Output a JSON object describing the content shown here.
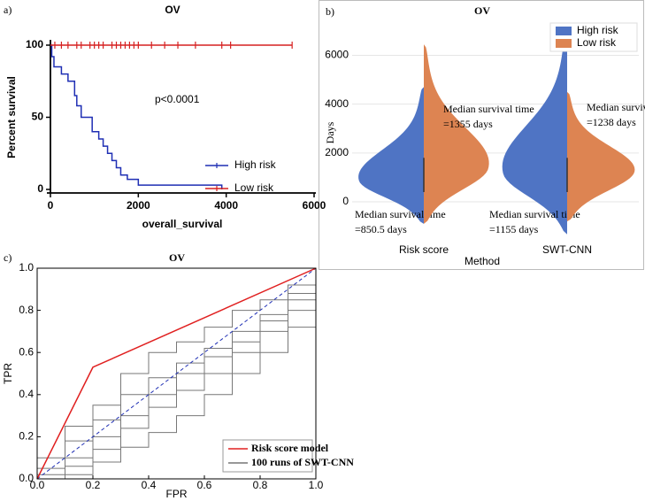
{
  "chart_data": [
    {
      "type": "survival",
      "panel_label": "a)",
      "title": "OV",
      "xlabel": "overall_survival",
      "ylabel": "Percent survival",
      "annotation": "p<0.0001",
      "xlim": [
        0,
        6000
      ],
      "xticks": [
        0,
        2000,
        4000,
        6000
      ],
      "ylim": [
        0,
        100
      ],
      "yticks": [
        0,
        50,
        100
      ],
      "legend": "right",
      "series": [
        {
          "name": "High risk",
          "color": "#1f2fb4",
          "x": [
            0,
            30,
            30,
            80,
            80,
            250,
            250,
            400,
            400,
            550,
            550,
            600,
            600,
            700,
            700,
            950,
            950,
            1100,
            1100,
            1200,
            1200,
            1300,
            1300,
            1400,
            1400,
            1500,
            1500,
            1600,
            1600,
            1750,
            1750,
            2000,
            2000,
            3900,
            3900
          ],
          "values": [
            100,
            100,
            92,
            92,
            85,
            85,
            80,
            80,
            75,
            75,
            65,
            65,
            58,
            58,
            50,
            50,
            40,
            40,
            35,
            35,
            30,
            30,
            25,
            25,
            20,
            20,
            15,
            15,
            10,
            10,
            7,
            7,
            3,
            3,
            0
          ]
        },
        {
          "name": "Low risk",
          "color": "#d62020",
          "x": [
            0,
            5500
          ],
          "values": [
            100,
            100
          ],
          "censored": [
            100,
            250,
            400,
            600,
            700,
            900,
            1000,
            1100,
            1200,
            1400,
            1500,
            1600,
            1700,
            1800,
            1900,
            2000,
            2300,
            2600,
            2900,
            3300,
            3900,
            4100,
            5500
          ]
        }
      ]
    },
    {
      "type": "violin",
      "panel_label": "b)",
      "title": "OV",
      "xlabel": "Method",
      "ylabel": "Days",
      "annotation": "Median survival time",
      "categories": [
        "Risk score",
        "SWT-CNN"
      ],
      "ylim": [
        -1450,
        7250
      ],
      "yticks": [
        0,
        2000,
        4000,
        6000
      ],
      "grid": true,
      "legend": "upper right",
      "series": [
        {
          "name": "High risk",
          "color": "#4f74c4",
          "values": [
            850.5,
            1155
          ],
          "value_labels": [
            "=850.5 days",
            "=1155 days"
          ],
          "min": [
            -900,
            -1330
          ],
          "max": [
            4700,
            7000
          ]
        },
        {
          "name": "Low risk",
          "color": "#dd8452",
          "values": [
            1355,
            1238
          ],
          "value_labels": [
            "=1355 days",
            "=1238 days"
          ],
          "min": [
            -900,
            -800
          ],
          "max": [
            6450,
            4500
          ]
        }
      ]
    },
    {
      "type": "roc",
      "panel_label": "c)",
      "title": "OV",
      "xlabel": "FPR",
      "ylabel": "TPR",
      "xlim": [
        0,
        1
      ],
      "xticks": [
        {
          "value": 0,
          "label": "0.0"
        },
        0.2,
        0.4,
        0.6,
        0.8,
        {
          "value": 1,
          "label": "1.0"
        }
      ],
      "ylim": [
        0,
        1
      ],
      "yticks": [
        {
          "value": 0,
          "label": "0.0"
        },
        0.2,
        0.4,
        0.6,
        0.8,
        {
          "value": 1,
          "label": "1.0"
        }
      ],
      "legend": "lower right",
      "series": [
        {
          "name": "Risk score model",
          "color": "#e02020",
          "x": [
            0,
            0.2,
            1
          ],
          "values": [
            0,
            0.53,
            1
          ]
        },
        {
          "name": "100 runs of SWT-CNN",
          "color": "#777777",
          "x": [
            0,
            0,
            0.1,
            0.1,
            0.2,
            0.2,
            0.3,
            0.3,
            0.4,
            0.4,
            0.5,
            0.5,
            0.6,
            0.6,
            0.7,
            0.7,
            0.8,
            0.8,
            0.9,
            0.9,
            1,
            1
          ],
          "runs": [
            [
              0,
              0.1,
              0.1,
              0.25,
              0.25,
              0.35,
              0.35,
              0.5,
              0.5,
              0.6,
              0.6,
              0.65,
              0.65,
              0.72,
              0.72,
              0.8,
              0.8,
              0.85,
              0.85,
              0.92,
              0.92,
              1
            ],
            [
              0,
              0,
              0,
              0.1,
              0.1,
              0.2,
              0.2,
              0.3,
              0.3,
              0.4,
              0.4,
              0.5,
              0.5,
              0.58,
              0.58,
              0.65,
              0.65,
              0.75,
              0.75,
              0.85,
              0.85,
              1
            ],
            [
              0,
              0,
              0,
              0.02,
              0.02,
              0.08,
              0.08,
              0.15,
              0.15,
              0.22,
              0.22,
              0.3,
              0.3,
              0.4,
              0.4,
              0.5,
              0.5,
              0.6,
              0.6,
              0.72,
              0.72,
              1
            ],
            [
              0,
              0.05,
              0.05,
              0.18,
              0.18,
              0.28,
              0.28,
              0.4,
              0.4,
              0.48,
              0.48,
              0.55,
              0.55,
              0.62,
              0.62,
              0.7,
              0.7,
              0.78,
              0.78,
              0.88,
              0.88,
              1
            ],
            [
              0,
              0.02,
              0.02,
              0.06,
              0.06,
              0.14,
              0.14,
              0.24,
              0.24,
              0.34,
              0.34,
              0.42,
              0.42,
              0.5,
              0.5,
              0.6,
              0.6,
              0.7,
              0.7,
              0.8,
              0.8,
              1
            ]
          ]
        }
      ]
    }
  ]
}
